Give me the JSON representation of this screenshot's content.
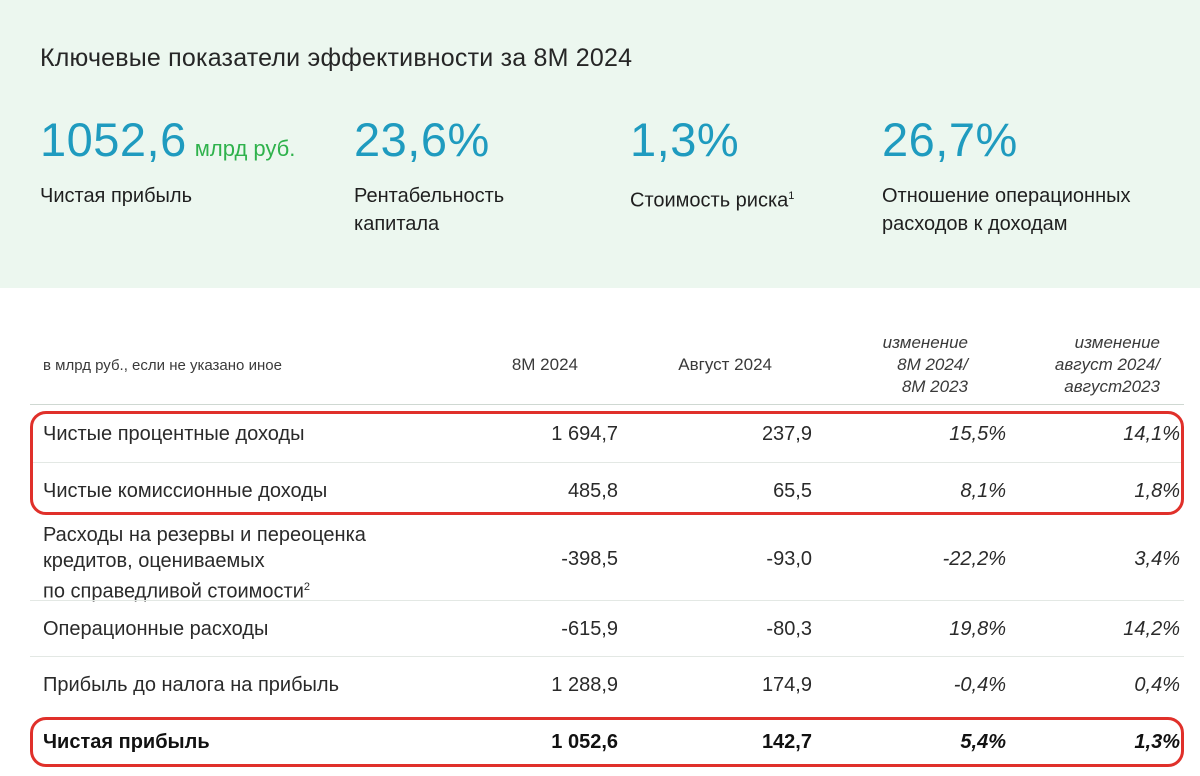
{
  "panel": {
    "title": "Ключевые показатели эффективности за 8М 2024",
    "kpis": [
      {
        "value": "1052,6",
        "unit": "млрд руб.",
        "label": "Чистая прибыль",
        "label_sup": ""
      },
      {
        "value": "23,6%",
        "unit": "",
        "label": "Рентабельность капитала",
        "label_sup": ""
      },
      {
        "value": "1,3%",
        "unit": "",
        "label": "Стоимость риска",
        "label_sup": "1"
      },
      {
        "value": "26,7%",
        "unit": "",
        "label": "Отношение операционных расходов к доходам",
        "label_sup": ""
      }
    ]
  },
  "table": {
    "note": "в млрд руб., если не указано иное",
    "columns": [
      "8М 2024",
      "Август 2024",
      "изменение 8М 2024/ 8М 2023",
      "изменение август 2024/ август2023"
    ],
    "col3_lines": [
      "изменение",
      "8М 2024/",
      "8М 2023"
    ],
    "col4_lines": [
      "изменение",
      "август 2024/",
      "август2023"
    ],
    "rows": [
      {
        "label": "Чистые процентные доходы",
        "v1": "1 694,7",
        "v2": "237,9",
        "c1": "15,5%",
        "c2": "14,1%"
      },
      {
        "label": "Чистые комиссионные доходы",
        "v1": "485,8",
        "v2": "65,5",
        "c1": "8,1%",
        "c2": "1,8%"
      },
      {
        "label_lines": [
          "Расходы на резервы и переоценка",
          "кредитов, оцениваемых",
          "по справедливой стоимости"
        ],
        "label_sup": "2",
        "v1": "-398,5",
        "v2": "-93,0",
        "c1": "-22,2%",
        "c2": "3,4%"
      },
      {
        "label": "Операционные расходы",
        "v1": "-615,9",
        "v2": "-80,3",
        "c1": "19,8%",
        "c2": "14,2%"
      },
      {
        "label": "Прибыль до налога на прибыль",
        "v1": "1 288,9",
        "v2": "174,9",
        "c1": "-0,4%",
        "c2": "0,4%"
      },
      {
        "label": "Чистая прибыль",
        "v1": "1 052,6",
        "v2": "142,7",
        "c1": "5,4%",
        "c2": "1,3%"
      }
    ]
  },
  "colors": {
    "panel_bg": "#ecf7ef",
    "accent_blue": "#1f9bbf",
    "accent_green": "#2fb24c",
    "highlight_red": "#e0302a"
  }
}
